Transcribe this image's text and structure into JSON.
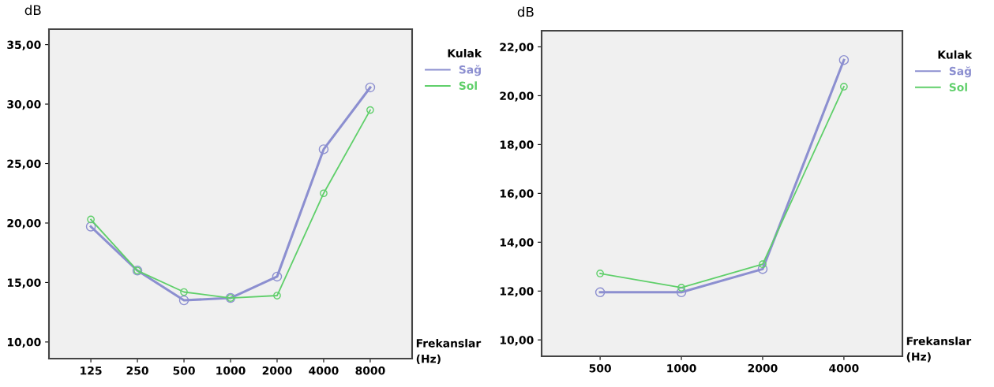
{
  "chart_data": [
    {
      "type": "line",
      "ylabel": "dB",
      "xlabel": "Frekanslar\n(Hz)",
      "legend_title": "Kulak",
      "legend": "right",
      "marker": "circle",
      "line_style": "solid",
      "grid": false,
      "categories": [
        "125",
        "250",
        "500",
        "1000",
        "2000",
        "4000",
        "8000"
      ],
      "ylim": [
        8.6,
        36.3
      ],
      "yticks": [
        {
          "value": 10,
          "label": "10,00"
        },
        {
          "value": 15,
          "label": "15,00"
        },
        {
          "value": 20,
          "label": "20,00"
        },
        {
          "value": 25,
          "label": "25,00"
        },
        {
          "value": 30,
          "label": "30,00"
        },
        {
          "value": 35,
          "label": "35,00"
        }
      ],
      "series": [
        {
          "name": "Sağ",
          "color": "#8c8fd0",
          "values": [
            19.7,
            16.0,
            13.5,
            13.7,
            15.5,
            26.2,
            31.4
          ]
        },
        {
          "name": "Sol",
          "color": "#5fcf6a",
          "values": [
            20.3,
            16.0,
            14.2,
            13.7,
            13.9,
            22.5,
            29.5
          ]
        }
      ]
    },
    {
      "type": "line",
      "ylabel": "dB",
      "xlabel": "Frekanslar\n(Hz)",
      "legend_title": "Kulak",
      "legend": "right",
      "marker": "circle",
      "line_style": "solid",
      "grid": false,
      "categories": [
        "500",
        "1000",
        "2000",
        "4000"
      ],
      "ylim": [
        9.33,
        22.66
      ],
      "yticks": [
        {
          "value": 10,
          "label": "10,00"
        },
        {
          "value": 12,
          "label": "12,00"
        },
        {
          "value": 14,
          "label": "14,00"
        },
        {
          "value": 16,
          "label": "16,00"
        },
        {
          "value": 18,
          "label": "18,00"
        },
        {
          "value": 20,
          "label": "20,00"
        },
        {
          "value": 22,
          "label": "22,00"
        }
      ],
      "series": [
        {
          "name": "Sağ",
          "color": "#8c8fd0",
          "values": [
            11.95,
            11.95,
            12.9,
            21.46
          ]
        },
        {
          "name": "Sol",
          "color": "#5fcf6a",
          "values": [
            12.72,
            12.14,
            13.1,
            20.37
          ]
        }
      ]
    }
  ]
}
